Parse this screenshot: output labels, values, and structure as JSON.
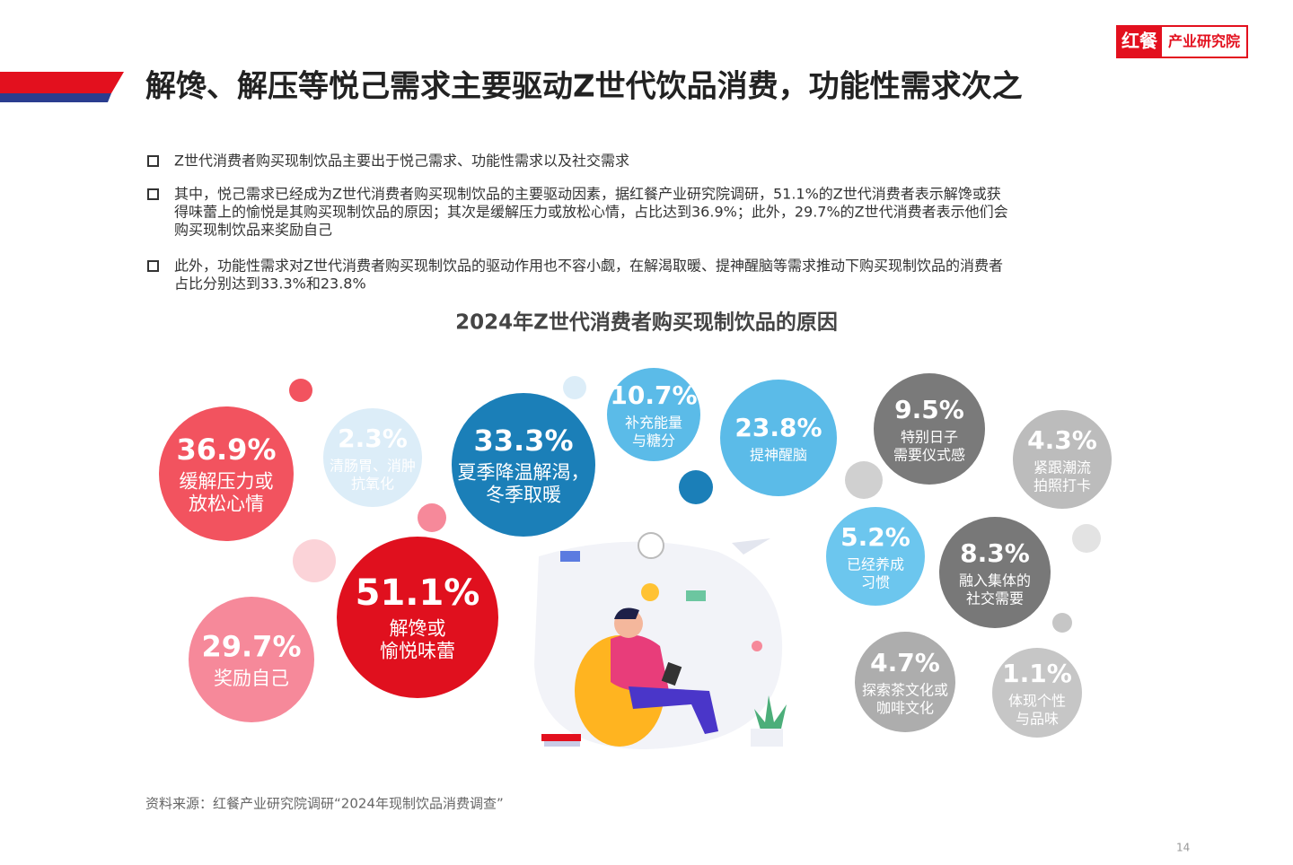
{
  "header": {
    "title": "解馋、解压等悦己需求主要驱动Z世代饮品消费，功能性需求次之",
    "logo_main": "红餐",
    "logo_sub": "产业研究院"
  },
  "bullets": [
    [
      "Z世代消费者购买现制饮品主要出于悦己需求、功能性需求以及社交需求"
    ],
    [
      "其中，悦己需求已经成为Z世代消费者购买现制饮品的主要驱动因素，据红餐产业研究院调研，51.1%的Z世代消费者表示解馋或获",
      "得味蕾上的愉悦是其购买现制饮品的原因；其次是缓解压力或放松心情，占比达到36.9%；此外，29.7%的Z世代消费者表示他们会",
      "购买现制饮品来奖励自己"
    ],
    [
      "此外，功能性需求对Z世代消费者购买现制饮品的驱动作用也不容小觑，在解渴取暖、提神醒脑等需求推动下购买现制饮品的消费者",
      "占比分别达到33.3%和23.8%"
    ]
  ],
  "chart_data": {
    "type": "bubble",
    "title": "2024年Z世代消费者购买现制饮品的原因",
    "categories": [
      [
        "缓解压力或",
        "放松心情"
      ],
      [
        "清肠胃、消肿",
        "抗氧化"
      ],
      [
        "夏季降温解渴，",
        "冬季取暖"
      ],
      [
        "补充能量",
        "与糖分"
      ],
      [
        "提神醒脑"
      ],
      [
        "解馋或",
        "愉悦味蕾"
      ],
      [
        "奖励自己"
      ],
      [
        "特别日子",
        "需要仪式感"
      ],
      [
        "紧跟潮流",
        "拍照打卡"
      ],
      [
        "已经养成",
        "习惯"
      ],
      [
        "融入集体的",
        "社交需要"
      ],
      [
        "探索茶文化或",
        "咖啡文化"
      ],
      [
        "体现个性",
        "与品味"
      ]
    ],
    "values": [
      36.9,
      2.3,
      33.3,
      10.7,
      23.8,
      51.1,
      29.7,
      9.5,
      4.3,
      5.2,
      8.3,
      4.7,
      1.1
    ],
    "value_labels": [
      "36.9%",
      "2.3%",
      "33.3%",
      "10.7%",
      "23.8%",
      "51.1%",
      "29.7%",
      "9.5%",
      "4.3%",
      "5.2%",
      "8.3%",
      "4.7%",
      "1.1%"
    ],
    "colors": [
      "#f2535f",
      "#dcedf8",
      "#1b7fb8",
      "#5bbbe8",
      "#5bbbe8",
      "#e0101e",
      "#f6899a",
      "#7a7a7a",
      "#bcbcbc",
      "#6cc6ee",
      "#787878",
      "#adadad",
      "#c6c6c6"
    ]
  },
  "source": "资料来源：红餐产业研究院调研“2024年现制饮品消费调查”",
  "page_number": "14"
}
